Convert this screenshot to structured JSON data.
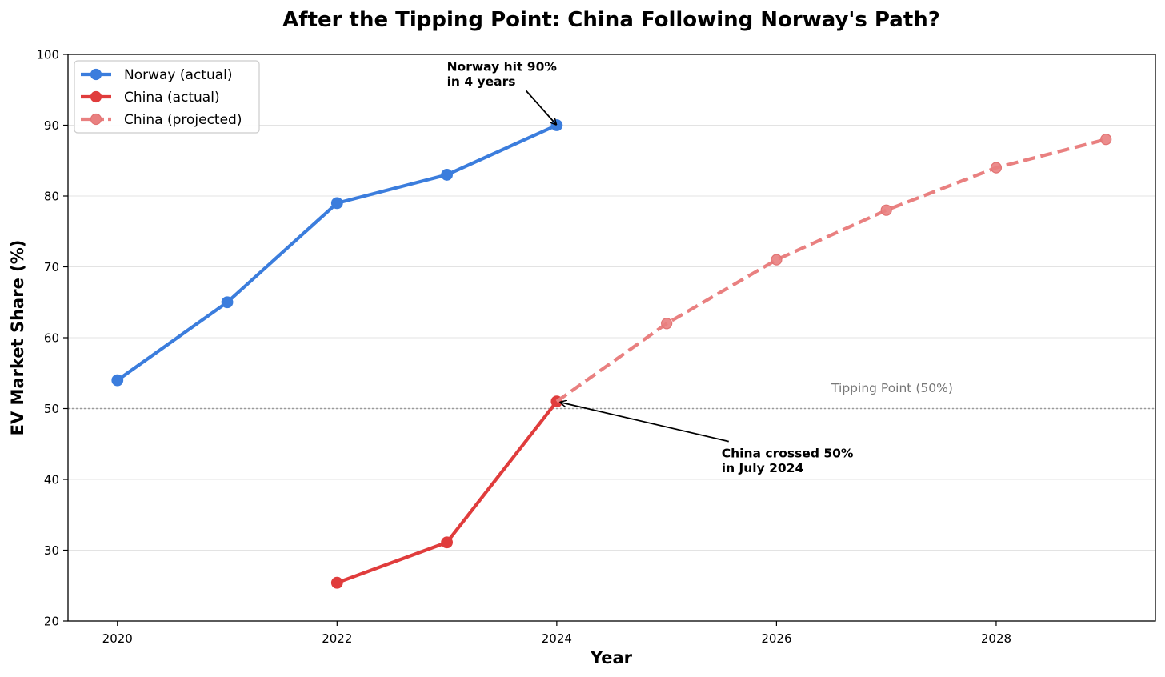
{
  "chart_data": {
    "type": "line",
    "title": "After the Tipping Point: China Following Norway's Path?",
    "xlabel": "Year",
    "ylabel": "EV Market Share (%)",
    "xlim": [
      2019.55,
      2029.45
    ],
    "ylim": [
      20,
      100
    ],
    "x_ticks": [
      2020,
      2022,
      2024,
      2026,
      2028
    ],
    "y_ticks": [
      20,
      30,
      40,
      50,
      60,
      70,
      80,
      90,
      100
    ],
    "grid": "horizontal",
    "legend_position": "top-left",
    "series": [
      {
        "name": "Norway (actual)",
        "color": "#3b7ddd",
        "style": "solid",
        "x": [
          2020,
          2021,
          2022,
          2023,
          2024
        ],
        "y": [
          54,
          65,
          79,
          83,
          90
        ]
      },
      {
        "name": "China (actual)",
        "color": "#e03c3c",
        "style": "solid",
        "x": [
          2022,
          2023,
          2024
        ],
        "y": [
          25.4,
          31.1,
          51
        ]
      },
      {
        "name": "China (projected)",
        "color": "#e98080",
        "style": "dashed",
        "x": [
          2024,
          2025,
          2026,
          2027,
          2028,
          2029
        ],
        "y": [
          51,
          62,
          71,
          78,
          84,
          88
        ]
      }
    ],
    "reference_line": {
      "y": 50,
      "label": "Tipping Point (50%)",
      "label_x": 2026.5,
      "label_y": 52.3
    },
    "annotations": [
      {
        "lines": [
          "Norway hit 90%",
          "in 4 years"
        ],
        "text_x": 2023.0,
        "text_y": 97.7,
        "target_x": 2024,
        "target_y": 90
      },
      {
        "lines": [
          "China crossed 50%",
          "in July 2024"
        ],
        "text_x": 2025.5,
        "text_y": 43.1,
        "target_x": 2024,
        "target_y": 51
      }
    ]
  }
}
